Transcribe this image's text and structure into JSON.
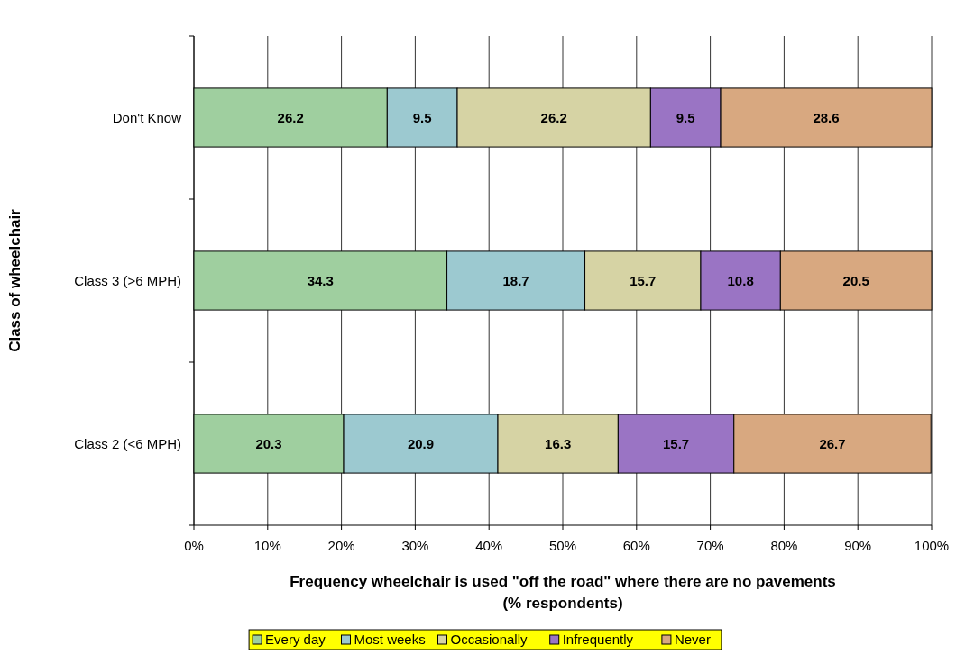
{
  "chart_data": {
    "type": "bar",
    "orientation": "horizontal",
    "stacked": true,
    "xlabel": "Frequency wheelchair is used \"off the road\" where there are no pavements\n(% respondents)",
    "ylabel": "Class of wheelchair",
    "categories": [
      "Don't Know",
      "Class 3 (>6 MPH)",
      "Class 2 (<6 MPH)"
    ],
    "series": [
      {
        "name": "Every day",
        "color": "#9fcf9f",
        "values": [
          26.2,
          34.3,
          20.3
        ]
      },
      {
        "name": "Most weeks",
        "color": "#9cc9d0",
        "values": [
          9.5,
          18.7,
          20.9
        ]
      },
      {
        "name": "Occasionally",
        "color": "#d6d3a4",
        "values": [
          26.2,
          15.7,
          16.3
        ]
      },
      {
        "name": "Infrequently",
        "color": "#9a74c4",
        "values": [
          9.5,
          10.8,
          15.7
        ]
      },
      {
        "name": "Never",
        "color": "#d8a880",
        "values": [
          28.6,
          20.5,
          26.7
        ]
      }
    ],
    "xlim": [
      0,
      100
    ],
    "xticks": [
      {
        "value": 0,
        "label": "0%"
      },
      {
        "value": 10,
        "label": "10%"
      },
      {
        "value": 20,
        "label": "20%"
      },
      {
        "value": 30,
        "label": "30%"
      },
      {
        "value": 40,
        "label": "40%"
      },
      {
        "value": 50,
        "label": "50%"
      },
      {
        "value": 60,
        "label": "60%"
      },
      {
        "value": 70,
        "label": "70%"
      },
      {
        "value": 80,
        "label": "80%"
      },
      {
        "value": 90,
        "label": "90%"
      },
      {
        "value": 100,
        "label": "100%"
      }
    ],
    "grid": "x",
    "data_labels": true,
    "legend": "bottom"
  }
}
